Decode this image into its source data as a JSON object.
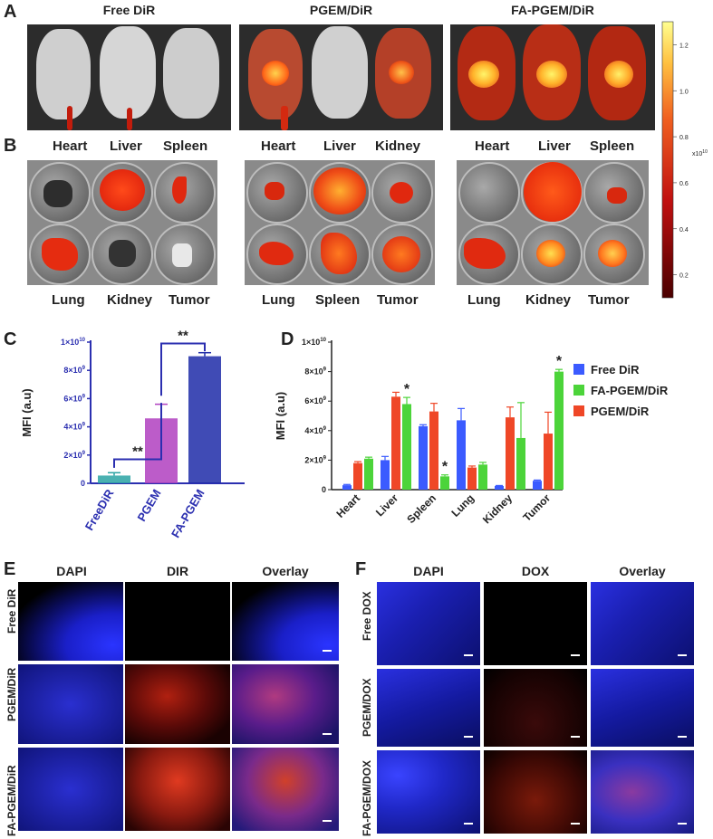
{
  "panels": {
    "A": "A",
    "B": "B",
    "C": "C",
    "D": "D",
    "E": "E",
    "F": "F"
  },
  "panelA": {
    "titles": [
      "Free DiR",
      "PGEM/DiR",
      "FA-PGEM/DiR"
    ],
    "colorbar": {
      "ticks": [
        "1.2",
        "1.0",
        "0.8",
        "0.6",
        "0.4",
        "0.2"
      ],
      "tick_values": [
        1.2,
        1.0,
        0.8,
        0.6,
        0.4,
        0.2
      ],
      "unit": "x10",
      "unit_exp": "10",
      "range": [
        0.1,
        1.3
      ]
    }
  },
  "panelB": {
    "plates": [
      {
        "top": [
          "Heart",
          "Liver",
          "Spleen"
        ],
        "bottom": [
          "Lung",
          "Kidney",
          "Tumor"
        ]
      },
      {
        "top": [
          "Heart",
          "Liver",
          "Kidney"
        ],
        "bottom": [
          "Lung",
          "Spleen",
          "Tumor"
        ]
      },
      {
        "top": [
          "Heart",
          "Liver",
          "Spleen"
        ],
        "bottom": [
          "Lung",
          "Kidney",
          "Tumor"
        ]
      }
    ]
  },
  "colors": {
    "free": "#3b5bff",
    "fa": "#4cd43a",
    "pgem": "#ef4727",
    "c_free": "#2aa3a3",
    "c_pgem": "#b040c0",
    "c_fa": "#1f2ca8",
    "axisC": "#2b2fb0"
  },
  "chart_data": [
    {
      "type": "bar",
      "ylabel": "MFI (a.u)",
      "ylim": [
        0,
        10000000000
      ],
      "yticks": [
        {
          "base": "0",
          "exp": ""
        },
        {
          "base": "2×10",
          "exp": "9"
        },
        {
          "base": "4×10",
          "exp": "9"
        },
        {
          "base": "6×10",
          "exp": "9"
        },
        {
          "base": "8×10",
          "exp": "9"
        },
        {
          "base": "1×10",
          "exp": "10"
        }
      ],
      "categories": [
        "FreeDiR",
        "PGEM",
        "FA-PGEM"
      ],
      "values": [
        550000000,
        4600000000,
        9000000000
      ],
      "errors": [
        200000000,
        1000000000,
        250000000
      ],
      "annotations": [
        "**",
        "**"
      ]
    },
    {
      "type": "bar",
      "ylabel": "MFI (a.u)",
      "ylim": [
        0,
        10000000000
      ],
      "yticks": [
        {
          "base": "0",
          "exp": ""
        },
        {
          "base": "2×10",
          "exp": "9"
        },
        {
          "base": "4×10",
          "exp": "9"
        },
        {
          "base": "6×10",
          "exp": "9"
        },
        {
          "base": "8×10",
          "exp": "9"
        },
        {
          "base": "1×10",
          "exp": "10"
        }
      ],
      "categories": [
        "Heart",
        "Liver",
        "Spleen",
        "Lung",
        "Kidney",
        "Tumor"
      ],
      "legend": [
        "Free DiR",
        "FA-PGEM/DiR",
        "PGEM/DiR"
      ],
      "series": [
        {
          "name": "Free DiR",
          "values": [
            300000000,
            2000000000,
            4300000000,
            4700000000,
            250000000,
            600000000
          ],
          "errors": [
            50000000,
            250000000,
            100000000,
            800000000,
            30000000,
            50000000
          ]
        },
        {
          "name": "PGEM/DiR",
          "values": [
            1800000000,
            6300000000,
            5300000000,
            1500000000,
            4900000000,
            3800000000
          ],
          "errors": [
            100000000,
            300000000,
            550000000,
            100000000,
            700000000,
            1450000000
          ]
        },
        {
          "name": "FA-PGEM/DiR",
          "values": [
            2100000000,
            5800000000,
            900000000,
            1700000000,
            3500000000,
            8000000000
          ],
          "errors": [
            100000000,
            450000000,
            100000000,
            150000000,
            2400000000,
            150000000
          ]
        }
      ],
      "stars": [
        "",
        "*",
        "*",
        "",
        "",
        "*"
      ]
    }
  ],
  "panelE": {
    "columns": [
      "DAPI",
      "DIR",
      "Overlay"
    ],
    "rows": [
      "Free DiR",
      "PGEM/DiR",
      "FA-PGEM/DiR"
    ]
  },
  "panelF": {
    "columns": [
      "DAPI",
      "DOX",
      "Overlay"
    ],
    "rows": [
      "Free DOX",
      "PGEM/DOX",
      "FA-PGEM/DOX"
    ]
  }
}
